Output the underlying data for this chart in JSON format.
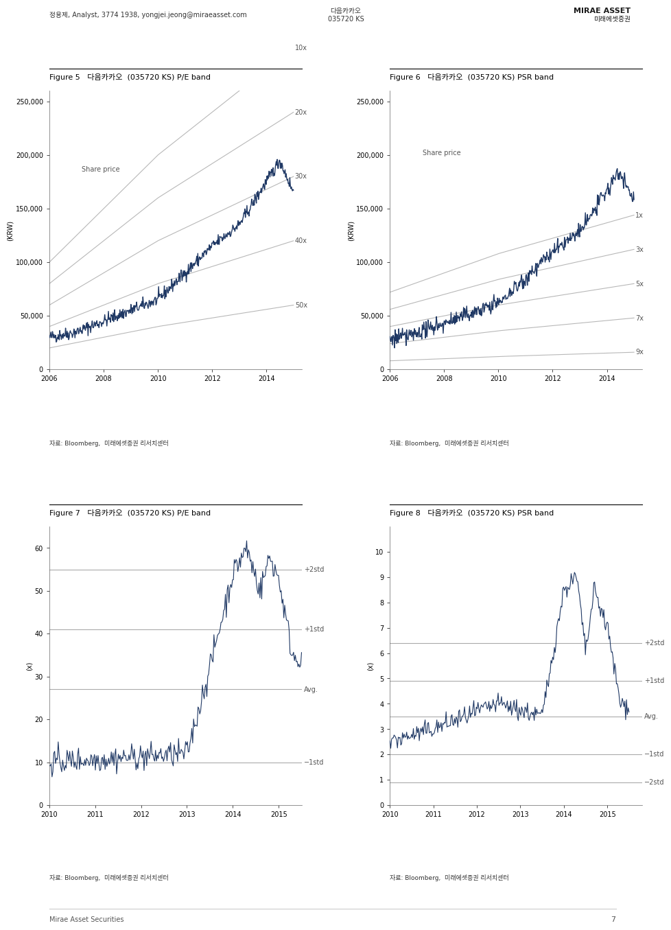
{
  "header_left": "정용제, Analyst, 3774 1938, yongjei.jeong@miraeasset.com",
  "header_center": "다음카카오\n035720 KS",
  "page_number": "7",
  "footer_text": "Mirae Asset Securities",
  "fig5_title": "Figure 5   다음카카오  (035720 KS) P/E band",
  "fig6_title": "Figure 6   다음카카오  (035720 KS) PSR band",
  "fig7_title": "Figure 7   다음카카오  (035720 KS) P/E band",
  "fig8_title": "Figure 8   다음카카오  (035720 KS) PSR band",
  "source_text": "자료: Bloomberg,  미래에셋증권 리서치센터",
  "fig5_ylabel": "(KRW)",
  "fig6_ylabel": "(KRW)",
  "fig7_ylabel": "(x)",
  "fig8_ylabel": "(x)",
  "fig5_yticks": [
    0,
    50000,
    100000,
    150000,
    200000,
    250000
  ],
  "fig6_yticks": [
    0,
    50000,
    100000,
    150000,
    200000,
    250000
  ],
  "fig7_yticks": [
    0,
    10,
    20,
    30,
    40,
    50,
    60
  ],
  "fig8_yticks": [
    0,
    1,
    2,
    3,
    4,
    5,
    6,
    7,
    8,
    9,
    10
  ],
  "fig5_band_labels": [
    "50x",
    "40x",
    "30x",
    "20x",
    "10x"
  ],
  "fig6_band_labels": [
    "9x",
    "7x",
    "5x",
    "3x",
    "1x"
  ],
  "fig7_band_labels": [
    "+2std",
    "+1std",
    "Avg.",
    "−1std"
  ],
  "fig8_band_labels": [
    "+2std",
    "+1std",
    "Avg.",
    "−1std",
    "−2std"
  ],
  "fig7_hlines": [
    55.0,
    41.0,
    27.0,
    10.0
  ],
  "fig8_hlines": [
    6.4,
    4.9,
    3.5,
    2.0,
    0.9
  ],
  "dark_blue": "#1f3864",
  "medium_blue": "#2e75b6",
  "light_blue": "#9dc3e6",
  "gray_line": "#aaaaaa",
  "dark_gray": "#404040",
  "light_gray": "#c0c0c0",
  "band_gray": "#999999"
}
